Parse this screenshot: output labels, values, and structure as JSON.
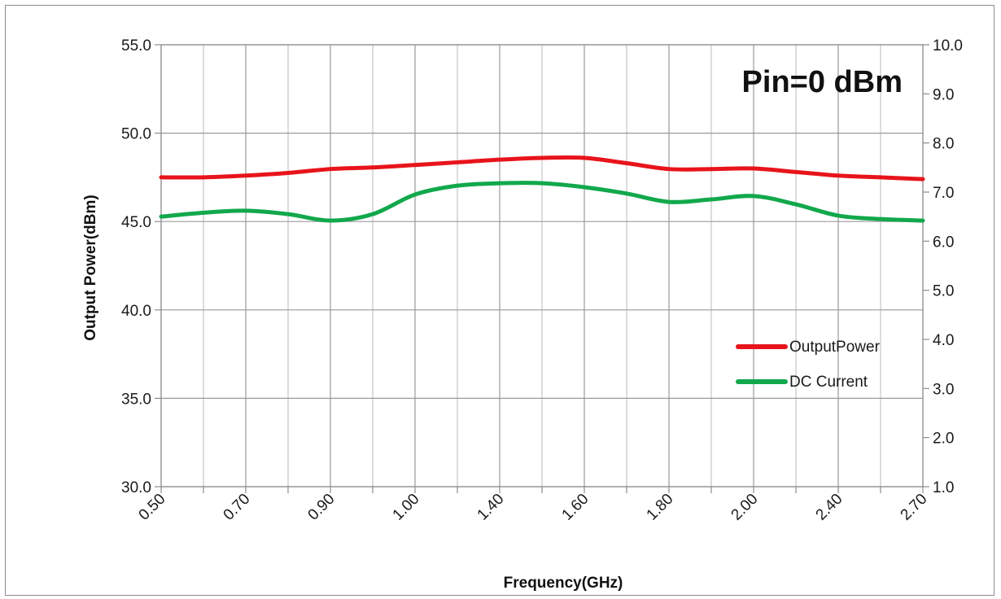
{
  "chart_data": {
    "type": "line",
    "x_categories": [
      "0.50",
      "0.60",
      "0.70",
      "0.80",
      "0.90",
      "0.95",
      "1.00",
      "1.20",
      "1.40",
      "1.50",
      "1.60",
      "1.70",
      "1.80",
      "1.90",
      "2.00",
      "2.20",
      "2.40",
      "2.50",
      "2.70"
    ],
    "x_tick_labels": [
      "0.50",
      "0.70",
      "0.90",
      "1.00",
      "1.40",
      "1.60",
      "1.80",
      "2.00",
      "2.40",
      "2.70"
    ],
    "xlabel": "Frequency(GHz)",
    "ylabel_left": "Output Power(dBm)",
    "ylim_left": [
      30.0,
      55.0
    ],
    "yticks_left": [
      "30.0",
      "35.0",
      "40.0",
      "45.0",
      "50.0",
      "55.0"
    ],
    "ylim_right": [
      1.0,
      10.0
    ],
    "yticks_right": [
      "1.0",
      "2.0",
      "3.0",
      "4.0",
      "5.0",
      "6.0",
      "7.0",
      "8.0",
      "9.0",
      "10.0"
    ],
    "annotation": "Pin=0 dBm",
    "legend_position": "right",
    "grid": true,
    "series": [
      {
        "name": "OutputPower",
        "axis": "left",
        "color": "#e8141b",
        "values": [
          47.5,
          47.5,
          47.6,
          47.75,
          47.97,
          48.06,
          48.2,
          48.35,
          48.5,
          48.6,
          48.6,
          48.3,
          47.97,
          47.97,
          48.0,
          47.8,
          47.6,
          47.5,
          47.4
        ]
      },
      {
        "name": "DC Current",
        "axis": "right",
        "color": "#12a84c",
        "values": [
          6.5,
          6.58,
          6.62,
          6.55,
          6.42,
          6.55,
          6.95,
          7.13,
          7.18,
          7.18,
          7.1,
          6.97,
          6.8,
          6.85,
          6.92,
          6.75,
          6.52,
          6.45,
          6.42
        ]
      }
    ]
  }
}
